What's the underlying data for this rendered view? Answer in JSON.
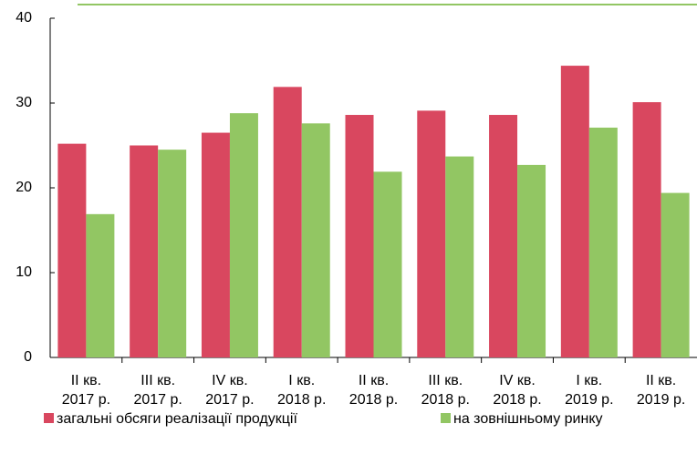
{
  "chart_data": {
    "type": "bar",
    "categories": [
      [
        "II кв.",
        "2017 р."
      ],
      [
        "III кв.",
        "2017 р."
      ],
      [
        "IV кв.",
        "2017 р."
      ],
      [
        "I кв.",
        "2018 р."
      ],
      [
        "II кв.",
        "2018 р."
      ],
      [
        "III кв.",
        "2018 р."
      ],
      [
        "IV кв.",
        "2018 р."
      ],
      [
        "I кв.",
        "2019 р."
      ],
      [
        "II кв.",
        "2019 р."
      ]
    ],
    "series": [
      {
        "name": "загальні обсяги реалізації продукції",
        "color": "#d9475f",
        "values": [
          25.2,
          25.0,
          26.5,
          31.9,
          28.6,
          29.1,
          28.6,
          34.4,
          30.1
        ]
      },
      {
        "name": "на зовнішньому ринку",
        "color": "#92c663",
        "values": [
          16.9,
          24.5,
          28.8,
          27.6,
          21.9,
          23.7,
          22.7,
          27.1,
          19.4
        ]
      }
    ],
    "ylim": [
      0,
      40
    ],
    "yticks": [
      0,
      10,
      20,
      30,
      40
    ],
    "grid": false
  }
}
